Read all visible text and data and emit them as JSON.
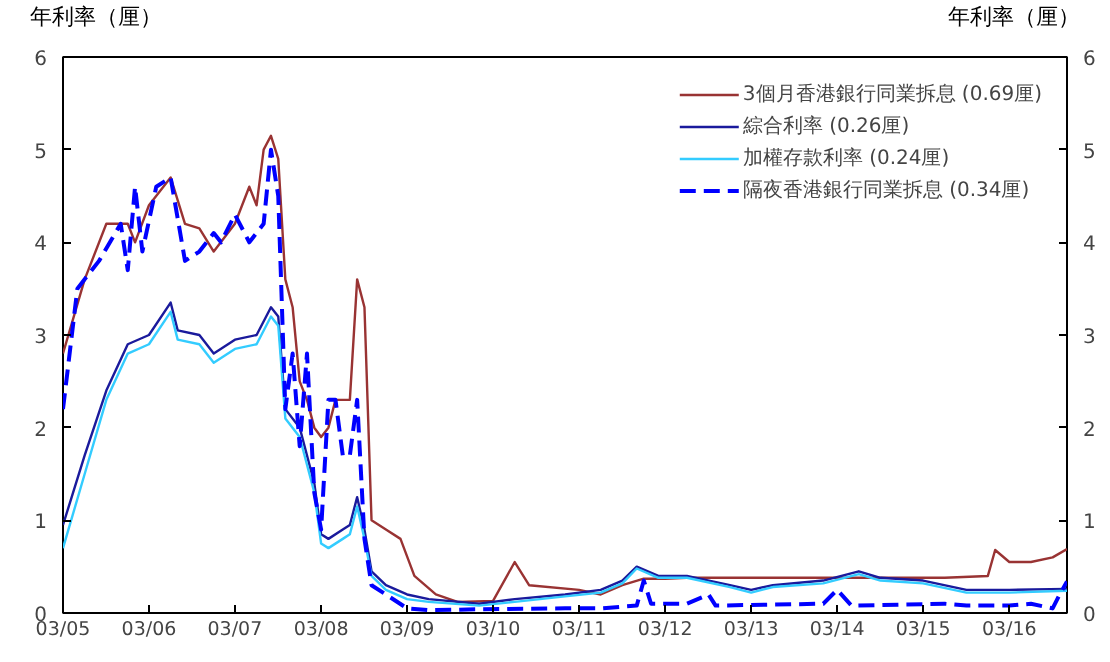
{
  "chart_data": {
    "type": "line",
    "ylabel": "年利率（厘）",
    "y2label": "年利率（厘）",
    "xlim": [
      "2005-03",
      "2016-11"
    ],
    "ylim": [
      0,
      6
    ],
    "y2lim": [
      0,
      6
    ],
    "yticks": [
      0,
      1,
      2,
      3,
      4,
      5,
      6
    ],
    "y2ticks": [
      0,
      1,
      2,
      3,
      4,
      5,
      6
    ],
    "xticks": [
      {
        "value": "2005-03",
        "label": "03/05"
      },
      {
        "value": "2006-03",
        "label": "03/06"
      },
      {
        "value": "2007-03",
        "label": "03/07"
      },
      {
        "value": "2008-03",
        "label": "03/08"
      },
      {
        "value": "2009-03",
        "label": "03/09"
      },
      {
        "value": "2010-03",
        "label": "03/10"
      },
      {
        "value": "2011-03",
        "label": "03/11"
      },
      {
        "value": "2012-03",
        "label": "03/12"
      },
      {
        "value": "2013-03",
        "label": "03/13"
      },
      {
        "value": "2014-03",
        "label": "03/14"
      },
      {
        "value": "2015-03",
        "label": "03/15"
      },
      {
        "value": "2016-03",
        "label": "03/16"
      }
    ],
    "grid": false,
    "legend": "top right",
    "marker": "none",
    "series": [
      {
        "name": "3個月香港銀行同業拆息 (0.69厘)",
        "color": "#993333",
        "line_style": "solid",
        "x": [
          "2005-03",
          "2005-06",
          "2005-09",
          "2005-12",
          "2006-01",
          "2006-03",
          "2006-06",
          "2006-08",
          "2006-10",
          "2006-12",
          "2007-03",
          "2007-05",
          "2007-06",
          "2007-07",
          "2007-08",
          "2007-09",
          "2007-10",
          "2007-11",
          "2007-12",
          "2008-01",
          "2008-02",
          "2008-03",
          "2008-04",
          "2008-05",
          "2008-07",
          "2008-08",
          "2008-09",
          "2008-10",
          "2008-12",
          "2009-02",
          "2009-04",
          "2009-07",
          "2009-10",
          "2010-03",
          "2010-06",
          "2010-08",
          "2011-03",
          "2011-06",
          "2011-09",
          "2011-12",
          "2012-03",
          "2012-06",
          "2013-06",
          "2014-06",
          "2015-06",
          "2015-12",
          "2016-01",
          "2016-03",
          "2016-06",
          "2016-09",
          "2016-11"
        ],
        "values": [
          2.8,
          3.6,
          4.2,
          4.2,
          4.0,
          4.4,
          4.7,
          4.2,
          4.15,
          3.9,
          4.2,
          4.6,
          4.4,
          5.0,
          5.15,
          4.9,
          3.6,
          3.3,
          2.5,
          2.3,
          2.0,
          1.9,
          2.0,
          2.3,
          2.3,
          3.6,
          3.3,
          1.0,
          0.9,
          0.8,
          0.4,
          0.2,
          0.12,
          0.13,
          0.55,
          0.3,
          0.25,
          0.2,
          0.3,
          0.37,
          0.37,
          0.38,
          0.38,
          0.38,
          0.38,
          0.4,
          0.68,
          0.55,
          0.55,
          0.6,
          0.69
        ]
      },
      {
        "name": "綜合利率 (0.26厘)",
        "color": "#1a1a9c",
        "line_style": "solid",
        "x": [
          "2005-03",
          "2005-06",
          "2005-09",
          "2005-12",
          "2006-03",
          "2006-06",
          "2006-07",
          "2006-10",
          "2006-12",
          "2007-03",
          "2007-06",
          "2007-08",
          "2007-09",
          "2007-10",
          "2007-12",
          "2008-02",
          "2008-03",
          "2008-04",
          "2008-06",
          "2008-07",
          "2008-08",
          "2008-09",
          "2008-10",
          "2008-12",
          "2009-03",
          "2009-06",
          "2010-01",
          "2010-06",
          "2011-01",
          "2011-06",
          "2011-09",
          "2011-11",
          "2012-02",
          "2012-06",
          "2012-12",
          "2013-03",
          "2013-06",
          "2014-01",
          "2014-06",
          "2014-09",
          "2015-03",
          "2015-09",
          "2016-03",
          "2016-11"
        ],
        "values": [
          0.95,
          1.7,
          2.4,
          2.9,
          3.0,
          3.35,
          3.05,
          3.0,
          2.8,
          2.95,
          3.0,
          3.3,
          3.2,
          2.2,
          2.0,
          1.4,
          0.85,
          0.8,
          0.9,
          0.95,
          1.25,
          0.9,
          0.45,
          0.3,
          0.2,
          0.15,
          0.1,
          0.15,
          0.2,
          0.25,
          0.35,
          0.5,
          0.4,
          0.4,
          0.3,
          0.25,
          0.3,
          0.35,
          0.45,
          0.38,
          0.35,
          0.25,
          0.25,
          0.26
        ]
      },
      {
        "name": "加權存款利率 (0.24厘)",
        "color": "#33ccff",
        "line_style": "solid",
        "x": [
          "2005-03",
          "2005-06",
          "2005-09",
          "2005-12",
          "2006-03",
          "2006-06",
          "2006-07",
          "2006-10",
          "2006-12",
          "2007-03",
          "2007-06",
          "2007-08",
          "2007-09",
          "2007-10",
          "2007-12",
          "2008-02",
          "2008-03",
          "2008-04",
          "2008-06",
          "2008-07",
          "2008-08",
          "2008-09",
          "2008-10",
          "2008-12",
          "2009-03",
          "2009-06",
          "2010-01",
          "2010-06",
          "2011-01",
          "2011-06",
          "2011-09",
          "2011-11",
          "2012-02",
          "2012-06",
          "2012-12",
          "2013-03",
          "2013-06",
          "2014-01",
          "2014-06",
          "2014-09",
          "2015-03",
          "2015-09",
          "2016-03",
          "2016-11"
        ],
        "values": [
          0.7,
          1.5,
          2.3,
          2.8,
          2.9,
          3.25,
          2.95,
          2.9,
          2.7,
          2.85,
          2.9,
          3.2,
          3.1,
          2.1,
          1.9,
          1.3,
          0.75,
          0.7,
          0.8,
          0.85,
          1.15,
          0.8,
          0.4,
          0.25,
          0.15,
          0.12,
          0.08,
          0.12,
          0.18,
          0.22,
          0.32,
          0.48,
          0.38,
          0.38,
          0.28,
          0.22,
          0.28,
          0.32,
          0.42,
          0.35,
          0.32,
          0.22,
          0.22,
          0.24
        ]
      },
      {
        "name": "隔夜香港銀行同業拆息 (0.34厘)",
        "color": "#0000ff",
        "line_style": "dashed",
        "x": [
          "2005-03",
          "2005-05",
          "2005-08",
          "2005-11",
          "2005-12",
          "2006-01",
          "2006-02",
          "2006-04",
          "2006-06",
          "2006-08",
          "2006-10",
          "2006-12",
          "2007-01",
          "2007-03",
          "2007-05",
          "2007-07",
          "2007-08",
          "2007-09",
          "2007-10",
          "2007-11",
          "2007-12",
          "2008-01",
          "2008-02",
          "2008-03",
          "2008-04",
          "2008-05",
          "2008-06",
          "2008-07",
          "2008-08",
          "2008-09",
          "2008-10",
          "2008-12",
          "2009-03",
          "2009-06",
          "2010-01",
          "2011-01",
          "2011-06",
          "2011-11",
          "2011-12",
          "2012-01",
          "2012-06",
          "2012-09",
          "2012-10",
          "2014-01",
          "2014-03",
          "2014-05",
          "2015-06",
          "2015-09",
          "2016-03",
          "2016-06",
          "2016-09",
          "2016-10",
          "2016-11"
        ],
        "values": [
          2.2,
          3.5,
          3.8,
          4.2,
          3.7,
          4.6,
          3.9,
          4.6,
          4.7,
          3.8,
          3.9,
          4.1,
          4.0,
          4.3,
          4.0,
          4.2,
          5.0,
          4.5,
          2.2,
          2.8,
          1.8,
          2.8,
          1.3,
          0.9,
          2.3,
          2.3,
          1.7,
          1.7,
          2.3,
          0.8,
          0.3,
          0.2,
          0.05,
          0.03,
          0.04,
          0.05,
          0.05,
          0.08,
          0.35,
          0.1,
          0.1,
          0.2,
          0.08,
          0.1,
          0.25,
          0.08,
          0.1,
          0.08,
          0.08,
          0.1,
          0.05,
          0.2,
          0.34
        ]
      }
    ]
  }
}
